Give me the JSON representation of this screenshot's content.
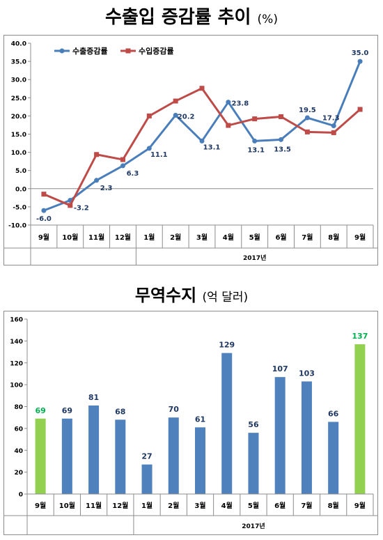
{
  "charts": {
    "growth": {
      "title_main": "수출입 증감률 추이",
      "title_unit": "(%)"
    },
    "balance": {
      "title_main": "무역수지",
      "title_unit": "(억 달러)"
    }
  },
  "chart_data": [
    {
      "type": "line",
      "title": "수출입 증감률 추이 (%)",
      "categories": [
        "9월",
        "10월",
        "11월",
        "12월",
        "1월",
        "2월",
        "3월",
        "4월",
        "5월",
        "6월",
        "7월",
        "8월",
        "9월"
      ],
      "year_label": "2017년",
      "ylim": [
        -10,
        40
      ],
      "yticks": [
        -10,
        -5,
        0,
        5,
        10,
        15,
        20,
        25,
        30,
        35,
        40
      ],
      "ytick_labels": [
        "-10.0",
        "-5.0",
        "0.0",
        "5.0",
        "10.0",
        "15.0",
        "20.0",
        "25.0",
        "30.0",
        "35.0",
        "40.0"
      ],
      "legend_position": "top-left",
      "series": [
        {
          "name": "수출증감률",
          "color": "#4a7ebb",
          "marker": "circle",
          "values": [
            -6.0,
            -3.2,
            2.3,
            6.3,
            11.1,
            20.2,
            13.1,
            23.8,
            13.1,
            13.5,
            19.5,
            17.3,
            35.0
          ],
          "labels": [
            "-6.0",
            "-3.2",
            "2.3",
            "6.3",
            "11.1",
            "20.2",
            "13.1",
            "23.8",
            "13.1",
            "13.5",
            "19.5",
            "17.3",
            "35.0"
          ]
        },
        {
          "name": "수입증감률",
          "color": "#be4b48",
          "marker": "square",
          "values": [
            -1.5,
            -4.6,
            9.4,
            8.0,
            20.0,
            24.1,
            27.6,
            17.4,
            19.2,
            19.8,
            15.6,
            15.4,
            21.8
          ]
        }
      ]
    },
    {
      "type": "bar",
      "title": "무역수지 (억 달러)",
      "categories": [
        "9월",
        "10월",
        "11월",
        "12월",
        "1월",
        "2월",
        "3월",
        "4월",
        "5월",
        "6월",
        "7월",
        "8월",
        "9월"
      ],
      "year_label": "2017년",
      "ylim": [
        0,
        160
      ],
      "yticks": [
        0,
        20,
        40,
        60,
        80,
        100,
        120,
        140,
        160
      ],
      "values": [
        69,
        69,
        81,
        68,
        27,
        70,
        61,
        129,
        56,
        107,
        103,
        66,
        137
      ],
      "highlight_indices": [
        0,
        12
      ],
      "colors": {
        "default": "#4f81bd",
        "highlight": "#92d050",
        "label_default": "#1f3864",
        "label_highlight": "#00b050"
      }
    }
  ]
}
